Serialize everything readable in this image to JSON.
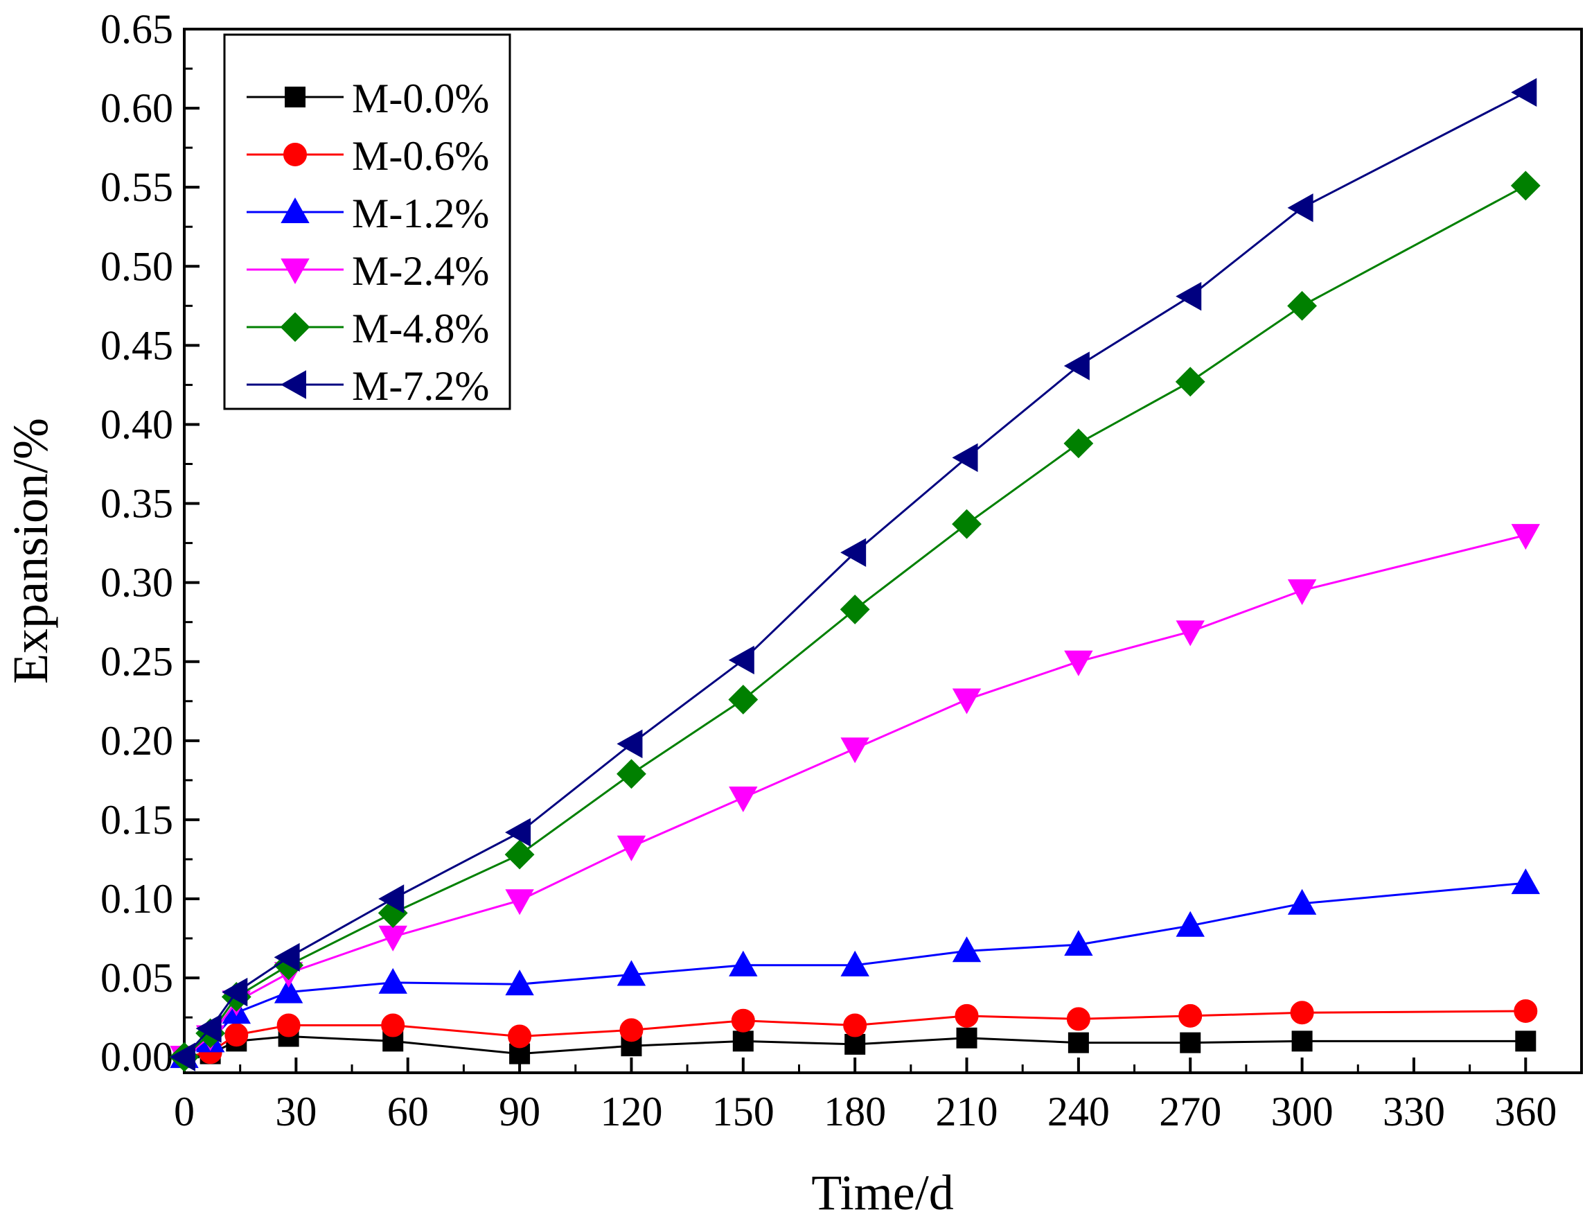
{
  "chart_data": {
    "type": "line",
    "title": "",
    "xlabel": "Time/d",
    "ylabel": "Expansion/%",
    "xlim": [
      0,
      375
    ],
    "ylim": [
      -0.01,
      0.65
    ],
    "xticks": [
      0,
      30,
      60,
      90,
      120,
      150,
      180,
      210,
      240,
      270,
      300,
      330,
      360
    ],
    "yticks": [
      "0.00",
      "0.05",
      "0.10",
      "0.15",
      "0.20",
      "0.25",
      "0.30",
      "0.35",
      "0.40",
      "0.45",
      "0.50",
      "0.55",
      "0.60",
      "0.65"
    ],
    "legend_position": "top-left",
    "x": [
      0,
      7,
      14,
      28,
      56,
      90,
      120,
      150,
      180,
      210,
      240,
      270,
      300,
      360
    ],
    "series": [
      {
        "name": "M-0.0%",
        "color": "#000000",
        "marker": "square",
        "values": [
          0.0,
          0.002,
          0.01,
          0.013,
          0.01,
          0.002,
          0.007,
          0.01,
          0.008,
          0.012,
          0.009,
          0.009,
          0.01,
          0.01
        ]
      },
      {
        "name": "M-0.6%",
        "color": "#ff0000",
        "marker": "circle",
        "values": [
          0.0,
          0.003,
          0.014,
          0.02,
          0.02,
          0.013,
          0.017,
          0.023,
          0.02,
          0.026,
          0.024,
          0.026,
          0.028,
          0.029
        ]
      },
      {
        "name": "M-1.2%",
        "color": "#0000ff",
        "marker": "triangle-up",
        "values": [
          0.0,
          0.01,
          0.028,
          0.041,
          0.047,
          0.046,
          0.052,
          0.058,
          0.058,
          0.067,
          0.071,
          0.083,
          0.097,
          0.11
        ]
      },
      {
        "name": "M-2.4%",
        "color": "#ff00ff",
        "marker": "triangle-down",
        "values": [
          0.0,
          0.013,
          0.035,
          0.053,
          0.076,
          0.099,
          0.133,
          0.164,
          0.195,
          0.226,
          0.25,
          0.269,
          0.295,
          0.33
        ]
      },
      {
        "name": "M-4.8%",
        "color": "#008000",
        "marker": "diamond",
        "values": [
          0.0,
          0.015,
          0.038,
          0.058,
          0.091,
          0.128,
          0.179,
          0.226,
          0.283,
          0.337,
          0.388,
          0.427,
          0.475,
          0.551
        ]
      },
      {
        "name": "M-7.2%",
        "color": "#000080",
        "marker": "triangle-left",
        "values": [
          0.0,
          0.018,
          0.041,
          0.063,
          0.1,
          0.142,
          0.198,
          0.251,
          0.319,
          0.379,
          0.437,
          0.481,
          0.537,
          0.61
        ]
      }
    ]
  }
}
